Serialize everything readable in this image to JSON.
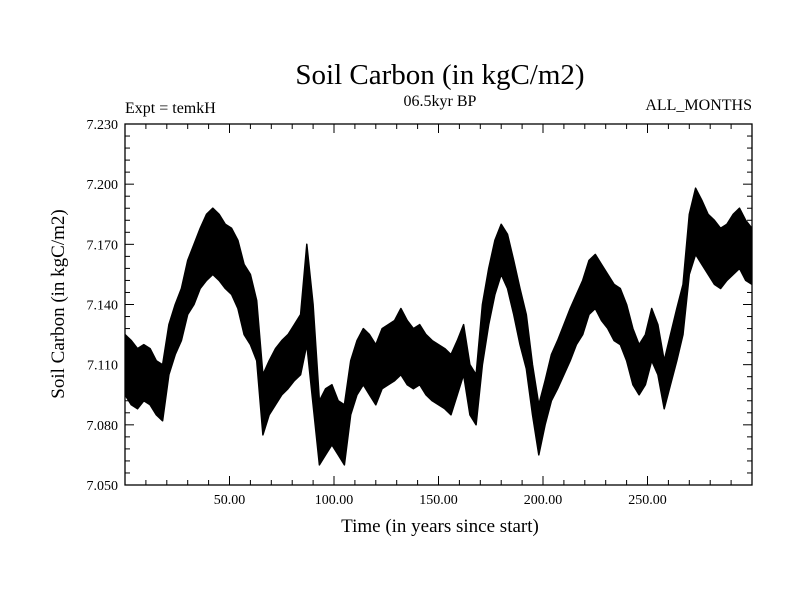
{
  "chart_data": {
    "type": "line",
    "title": "Soil Carbon (in kgC/m2)",
    "subtitle_left": "Expt = temkH",
    "subtitle_center": "06.5kyr BP",
    "subtitle_right": "ALL_MONTHS",
    "xlabel": "Time (in years since start)",
    "ylabel": "Soil Carbon (in kgC/m2)",
    "xlim": [
      0,
      300
    ],
    "ylim": [
      7.05,
      7.23
    ],
    "x_ticks": [
      50,
      100,
      150,
      200,
      250
    ],
    "x_tick_labels": [
      "50.00",
      "100.00",
      "150.00",
      "200.00",
      "250.00"
    ],
    "y_ticks": [
      7.05,
      7.08,
      7.11,
      7.14,
      7.17,
      7.2,
      7.23
    ],
    "y_tick_labels": [
      "7.050",
      "7.080",
      "7.110",
      "7.140",
      "7.170",
      "7.200",
      "7.230"
    ],
    "grid": false,
    "series": [
      {
        "name": "Soil Carbon",
        "color": "#000000",
        "x": [
          0,
          3,
          6,
          9,
          12,
          15,
          18,
          21,
          24,
          27,
          30,
          33,
          36,
          39,
          42,
          45,
          48,
          51,
          54,
          57,
          60,
          63,
          66,
          69,
          72,
          75,
          78,
          81,
          84,
          87,
          90,
          93,
          96,
          99,
          102,
          105,
          108,
          111,
          114,
          117,
          120,
          123,
          126,
          129,
          132,
          135,
          138,
          141,
          144,
          147,
          150,
          153,
          156,
          159,
          162,
          165,
          168,
          171,
          174,
          177,
          180,
          183,
          186,
          189,
          192,
          195,
          198,
          201,
          204,
          207,
          210,
          213,
          216,
          219,
          222,
          225,
          228,
          231,
          234,
          237,
          240,
          243,
          246,
          249,
          252,
          255,
          258,
          261,
          264,
          267,
          270,
          273,
          276,
          279,
          282,
          285,
          288,
          291,
          294,
          297,
          300
        ],
        "y_min": [
          7.095,
          7.09,
          7.088,
          7.092,
          7.09,
          7.085,
          7.082,
          7.105,
          7.115,
          7.122,
          7.135,
          7.14,
          7.148,
          7.152,
          7.155,
          7.152,
          7.148,
          7.145,
          7.138,
          7.125,
          7.12,
          7.112,
          7.075,
          7.085,
          7.09,
          7.095,
          7.098,
          7.102,
          7.105,
          7.12,
          7.09,
          7.06,
          7.065,
          7.07,
          7.065,
          7.06,
          7.085,
          7.095,
          7.1,
          7.095,
          7.09,
          7.098,
          7.1,
          7.102,
          7.105,
          7.1,
          7.098,
          7.1,
          7.095,
          7.092,
          7.09,
          7.088,
          7.085,
          7.095,
          7.105,
          7.085,
          7.08,
          7.11,
          7.13,
          7.145,
          7.155,
          7.148,
          7.135,
          7.12,
          7.108,
          7.085,
          7.065,
          7.08,
          7.092,
          7.098,
          7.105,
          7.112,
          7.12,
          7.125,
          7.135,
          7.138,
          7.132,
          7.128,
          7.122,
          7.12,
          7.112,
          7.1,
          7.095,
          7.1,
          7.112,
          7.105,
          7.088,
          7.1,
          7.112,
          7.125,
          7.155,
          7.165,
          7.16,
          7.155,
          7.15,
          7.148,
          7.152,
          7.155,
          7.158,
          7.152,
          7.15
        ],
        "y_max": [
          7.125,
          7.122,
          7.118,
          7.12,
          7.118,
          7.112,
          7.11,
          7.13,
          7.14,
          7.148,
          7.162,
          7.17,
          7.178,
          7.185,
          7.188,
          7.185,
          7.18,
          7.178,
          7.172,
          7.16,
          7.155,
          7.142,
          7.105,
          7.112,
          7.118,
          7.122,
          7.125,
          7.13,
          7.135,
          7.17,
          7.14,
          7.092,
          7.098,
          7.1,
          7.092,
          7.09,
          7.112,
          7.122,
          7.128,
          7.125,
          7.12,
          7.128,
          7.13,
          7.132,
          7.138,
          7.132,
          7.128,
          7.13,
          7.125,
          7.122,
          7.12,
          7.118,
          7.115,
          7.122,
          7.13,
          7.11,
          7.105,
          7.14,
          7.158,
          7.172,
          7.18,
          7.175,
          7.162,
          7.148,
          7.135,
          7.11,
          7.09,
          7.102,
          7.115,
          7.122,
          7.13,
          7.138,
          7.145,
          7.152,
          7.162,
          7.165,
          7.16,
          7.155,
          7.15,
          7.148,
          7.14,
          7.128,
          7.12,
          7.125,
          7.138,
          7.13,
          7.112,
          7.125,
          7.138,
          7.15,
          7.185,
          7.198,
          7.192,
          7.185,
          7.182,
          7.178,
          7.18,
          7.185,
          7.188,
          7.182,
          7.178
        ]
      }
    ]
  }
}
